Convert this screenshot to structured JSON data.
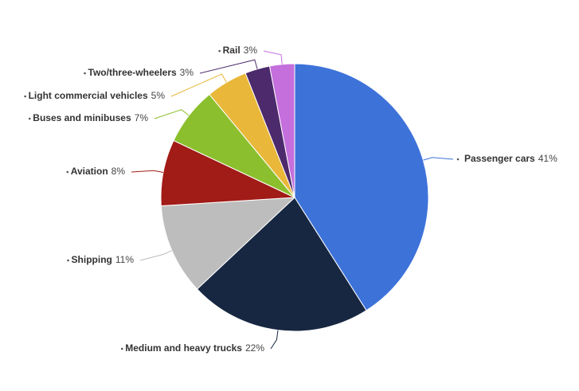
{
  "chart_data": {
    "type": "pie",
    "categories": [
      "Passenger cars",
      "Medium and heavy trucks",
      "Shipping",
      "Aviation",
      "Buses and minibuses",
      "Light commercial vehicles",
      "Two/three-wheelers",
      "Rail"
    ],
    "values": [
      41,
      22,
      11,
      8,
      7,
      5,
      3,
      3
    ],
    "value_labels": [
      "41%",
      "22%",
      "11%",
      "8%",
      "7%",
      "5%",
      "3%",
      "3%"
    ],
    "colors": [
      "#3d72d9",
      "#172741",
      "#bdbdbd",
      "#a11b17",
      "#8bbf2d",
      "#e9b83a",
      "#4c2a6b",
      "#c46fdc"
    ]
  }
}
